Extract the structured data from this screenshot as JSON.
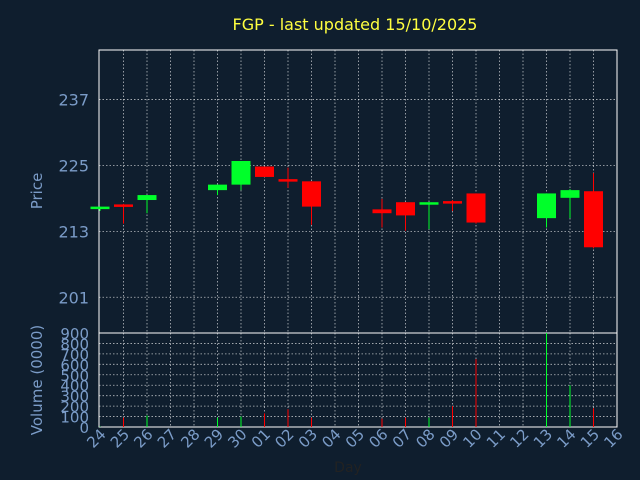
{
  "chart_data": [
    {
      "type": "candlestick",
      "title": "FGP - last updated 15/10/2025",
      "ylabel": "Price",
      "ylim": [
        194.5,
        246.0
      ],
      "yticks": [
        201,
        213,
        225,
        237
      ],
      "grid": true,
      "x_ticks": [
        "24",
        "25",
        "26",
        "27",
        "28",
        "29",
        "30",
        "01",
        "02",
        "03",
        "04",
        "05",
        "06",
        "07",
        "08",
        "09",
        "10",
        "11",
        "12",
        "13",
        "14",
        "15",
        "16"
      ],
      "candles": [
        {
          "day": "24",
          "open": 217.1,
          "high": 217.5,
          "low": 216.7,
          "close": 217.5
        },
        {
          "day": "25",
          "open": 217.9,
          "high": 218.0,
          "low": 214.4,
          "close": 217.5
        },
        {
          "day": "26",
          "open": 218.7,
          "high": 219.6,
          "low": 216.3,
          "close": 219.6
        },
        {
          "day": "29",
          "open": 220.5,
          "high": 221.5,
          "low": 219.6,
          "close": 221.5
        },
        {
          "day": "30",
          "open": 221.5,
          "high": 225.8,
          "low": 220.5,
          "close": 225.8
        },
        {
          "day": "01",
          "open": 224.8,
          "high": 224.8,
          "low": 222.9,
          "close": 222.9
        },
        {
          "day": "02",
          "open": 222.5,
          "high": 224.6,
          "low": 220.9,
          "close": 222.1
        },
        {
          "day": "03",
          "open": 222.1,
          "high": 222.1,
          "low": 214.2,
          "close": 217.5
        },
        {
          "day": "06",
          "open": 217.0,
          "high": 218.9,
          "low": 213.7,
          "close": 216.3
        },
        {
          "day": "07",
          "open": 218.3,
          "high": 218.3,
          "low": 213.1,
          "close": 215.9
        },
        {
          "day": "08",
          "open": 218.0,
          "high": 218.3,
          "low": 213.4,
          "close": 218.3
        },
        {
          "day": "09",
          "open": 218.5,
          "high": 218.7,
          "low": 216.7,
          "close": 218.3
        },
        {
          "day": "10",
          "open": 219.9,
          "high": 219.9,
          "low": 214.4,
          "close": 214.6
        },
        {
          "day": "13",
          "open": 215.4,
          "high": 219.9,
          "low": 213.7,
          "close": 219.9
        },
        {
          "day": "14",
          "open": 219.1,
          "high": 220.7,
          "low": 215.4,
          "close": 220.5
        },
        {
          "day": "15",
          "open": 220.3,
          "high": 223.6,
          "low": 209.9,
          "close": 210.1
        }
      ]
    },
    {
      "type": "bar",
      "xlabel": "Day",
      "ylabel": "Volume (0000)",
      "ylim": [
        0,
        900
      ],
      "yticks": [
        0,
        100,
        200,
        300,
        400,
        500,
        600,
        700,
        800,
        900
      ],
      "grid": true,
      "x_ticks": [
        "24",
        "25",
        "26",
        "27",
        "28",
        "29",
        "30",
        "01",
        "02",
        "03",
        "04",
        "05",
        "06",
        "07",
        "08",
        "09",
        "10",
        "11",
        "12",
        "13",
        "14",
        "15",
        "16"
      ],
      "series": [
        {
          "days": [
            "24",
            "25",
            "26",
            "29",
            "30",
            "01",
            "02",
            "03",
            "06",
            "07",
            "08",
            "09",
            "10",
            "13",
            "14",
            "15"
          ],
          "values": [
            5,
            90,
            110,
            90,
            100,
            130,
            170,
            90,
            80,
            90,
            90,
            200,
            650,
            900,
            400,
            180
          ],
          "direction": [
            "up",
            "down",
            "up",
            "up",
            "up",
            "down",
            "down",
            "down",
            "down",
            "down",
            "up",
            "down",
            "down",
            "up",
            "up",
            "down"
          ]
        }
      ]
    }
  ],
  "colors": {
    "background": "#0f1e2e",
    "title": "#ffff40",
    "axis_text": "#7b9cc8",
    "frame": "#ffffff",
    "grid": "#ffffff",
    "up": "#00ff2a",
    "down": "#ff0000"
  }
}
